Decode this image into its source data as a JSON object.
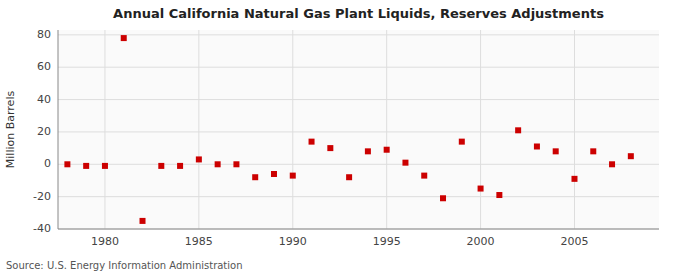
{
  "chart_data": {
    "type": "scatter",
    "title": "Annual California Natural Gas Plant Liquids, Reserves Adjustments",
    "ylabel": "Million Barrels",
    "source": "Source: U.S. Energy Information Administration",
    "x": [
      1978,
      1979,
      1980,
      1981,
      1982,
      1983,
      1984,
      1985,
      1986,
      1987,
      1988,
      1989,
      1990,
      1991,
      1992,
      1993,
      1994,
      1995,
      1996,
      1997,
      1998,
      1999,
      2000,
      2001,
      2002,
      2003,
      2004,
      2005,
      2006,
      2007,
      2008
    ],
    "values": [
      0,
      -1,
      -1,
      78,
      -35,
      -1,
      -1,
      3,
      0,
      0,
      -8,
      -6,
      -7,
      14,
      10,
      -8,
      8,
      9,
      1,
      -7,
      -21,
      14,
      -15,
      -19,
      21,
      11,
      8,
      -9,
      8,
      0,
      5
    ],
    "color": "#cc0000",
    "marker": "square",
    "xlim": [
      1977.5,
      2009.5
    ],
    "ylim": [
      -40,
      83
    ],
    "xticks": [
      1980,
      1985,
      1990,
      1995,
      2000,
      2005
    ],
    "yticks": [
      -40,
      -20,
      0,
      20,
      40,
      60,
      80
    ],
    "grid": true
  }
}
